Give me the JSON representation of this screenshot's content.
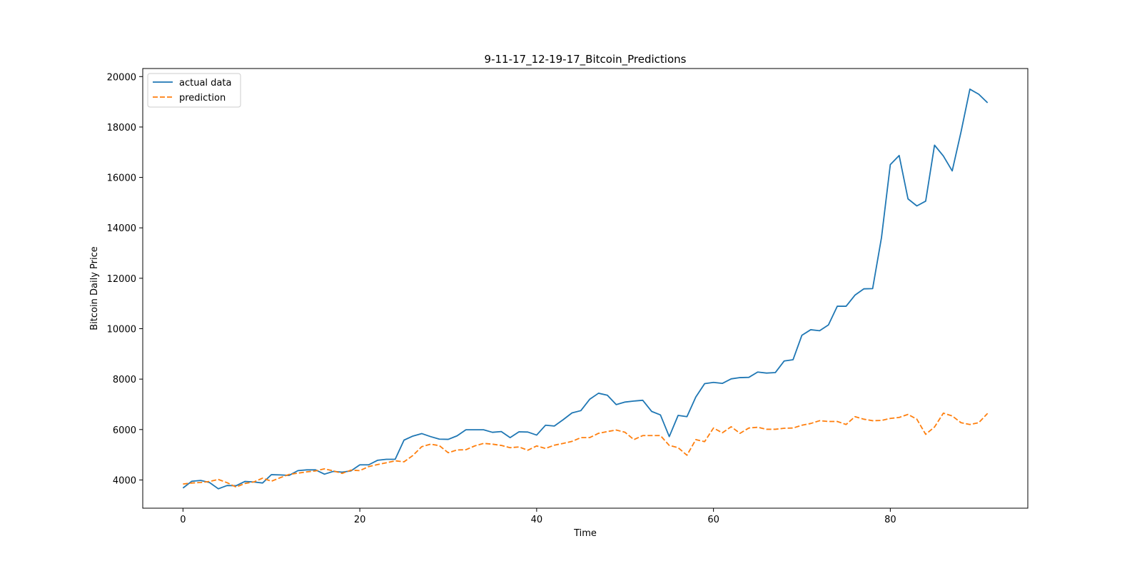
{
  "chart_data": {
    "type": "line",
    "title": "9-11-17_12-19-17_Bitcoin_Predictions",
    "xlabel": "Time",
    "ylabel": "Bitcoin Daily Price",
    "xlim": [
      -4.55,
      95.55
    ],
    "ylim": [
      2880,
      20320
    ],
    "xticks": [
      0,
      20,
      40,
      60,
      80
    ],
    "yticks": [
      4000,
      6000,
      8000,
      10000,
      12000,
      14000,
      16000,
      18000,
      20000
    ],
    "grid": false,
    "legend_position": "top-left",
    "series": [
      {
        "name": "actual data",
        "color": "#1f77b4",
        "dash": "solid",
        "x": [
          0,
          1,
          2,
          3,
          4,
          5,
          6,
          7,
          8,
          9,
          10,
          11,
          12,
          13,
          14,
          15,
          16,
          17,
          18,
          19,
          20,
          21,
          22,
          23,
          24,
          25,
          26,
          27,
          28,
          29,
          30,
          31,
          32,
          33,
          34,
          35,
          36,
          37,
          38,
          39,
          40,
          41,
          42,
          43,
          44,
          45,
          46,
          47,
          48,
          49,
          50,
          51,
          52,
          53,
          54,
          55,
          56,
          57,
          58,
          59,
          60,
          61,
          62,
          63,
          64,
          65,
          66,
          67,
          68,
          69,
          70,
          71,
          72,
          73,
          74,
          75,
          76,
          77,
          78,
          79,
          80,
          81,
          82,
          83,
          84,
          85,
          86,
          87,
          88,
          89,
          90,
          91
        ],
        "values": [
          3680,
          3950,
          3980,
          3900,
          3650,
          3780,
          3770,
          3940,
          3920,
          3880,
          4210,
          4200,
          4180,
          4370,
          4400,
          4400,
          4230,
          4340,
          4310,
          4360,
          4600,
          4600,
          4780,
          4820,
          4820,
          5580,
          5740,
          5840,
          5720,
          5620,
          5610,
          5750,
          5990,
          5990,
          5990,
          5890,
          5920,
          5680,
          5910,
          5900,
          5780,
          6170,
          6140,
          6390,
          6660,
          6750,
          7200,
          7440,
          7360,
          6990,
          7090,
          7130,
          7160,
          6720,
          6580,
          5720,
          6560,
          6510,
          7290,
          7820,
          7870,
          7830,
          8010,
          8060,
          8070,
          8280,
          8240,
          8260,
          8720,
          8770,
          9740,
          9960,
          9920,
          10150,
          10890,
          10890,
          11330,
          11580,
          11590,
          13610,
          16510,
          16870,
          15150,
          14870,
          15060,
          17280,
          16850,
          16260,
          17810,
          19500,
          19300,
          18960
        ]
      },
      {
        "name": "prediction",
        "color": "#ff7f0e",
        "dash": "dashed",
        "x": [
          0,
          1,
          2,
          3,
          4,
          5,
          6,
          7,
          8,
          9,
          10,
          11,
          12,
          13,
          14,
          15,
          16,
          17,
          18,
          19,
          20,
          21,
          22,
          23,
          24,
          25,
          26,
          27,
          28,
          29,
          30,
          31,
          32,
          33,
          34,
          35,
          36,
          37,
          38,
          39,
          40,
          41,
          42,
          43,
          44,
          45,
          46,
          47,
          48,
          49,
          50,
          51,
          52,
          53,
          54,
          55,
          56,
          57,
          58,
          59,
          60,
          61,
          62,
          63,
          64,
          65,
          66,
          67,
          68,
          69,
          70,
          71,
          72,
          73,
          74,
          75,
          76,
          77,
          78,
          79,
          80,
          81,
          82,
          83,
          84,
          85,
          86,
          87,
          88,
          89,
          90,
          91
        ],
        "values": [
          3840,
          3880,
          3900,
          3940,
          4020,
          3890,
          3720,
          3860,
          3920,
          4070,
          3950,
          4090,
          4220,
          4270,
          4320,
          4360,
          4440,
          4360,
          4260,
          4390,
          4370,
          4530,
          4610,
          4680,
          4760,
          4720,
          4970,
          5320,
          5420,
          5360,
          5080,
          5190,
          5200,
          5350,
          5450,
          5420,
          5370,
          5280,
          5310,
          5180,
          5350,
          5250,
          5380,
          5450,
          5530,
          5680,
          5680,
          5850,
          5920,
          5980,
          5890,
          5600,
          5760,
          5760,
          5760,
          5370,
          5280,
          4980,
          5600,
          5520,
          6060,
          5870,
          6110,
          5850,
          6060,
          6090,
          6010,
          6010,
          6050,
          6060,
          6170,
          6240,
          6350,
          6320,
          6320,
          6200,
          6510,
          6410,
          6350,
          6360,
          6440,
          6480,
          6600,
          6410,
          5810,
          6100,
          6650,
          6540,
          6270,
          6200,
          6270,
          6640
        ]
      }
    ]
  }
}
